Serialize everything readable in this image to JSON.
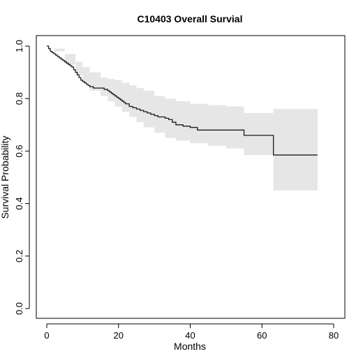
{
  "chart_data": {
    "type": "line",
    "title": "C10403 Overall Survial",
    "xlabel": "Months",
    "ylabel": "Survival Probability",
    "xlim": [
      0,
      80
    ],
    "ylim": [
      0,
      1
    ],
    "x_ticks": [
      0,
      20,
      40,
      60,
      80
    ],
    "y_ticks": [
      0.0,
      0.2,
      0.4,
      0.6,
      0.8,
      1.0
    ],
    "x_tick_labels": [
      "0",
      "20",
      "40",
      "60",
      "80"
    ],
    "y_tick_labels": [
      "0.0",
      "0.2",
      "0.4",
      "0.6",
      "0.8",
      "1.0"
    ],
    "grid": false,
    "legend": false,
    "colors": {
      "line": "#1a1a1a",
      "band": "#e6e6e6"
    },
    "series": [
      {
        "kind": "step",
        "x": [
          0,
          0.5,
          1,
          1.5,
          2,
          2.5,
          3,
          3.5,
          4,
          4.5,
          5,
          5.5,
          6,
          6.5,
          7,
          7.5,
          8,
          8.5,
          9,
          9.5,
          10,
          10.5,
          11,
          11.5,
          12,
          13,
          14,
          15,
          16,
          17,
          17.5,
          18,
          18.5,
          19,
          19.5,
          20,
          20.5,
          21,
          21.5,
          22,
          23,
          24,
          25,
          26,
          27,
          28,
          29,
          30,
          31,
          32,
          33,
          34,
          35,
          36,
          38,
          40,
          42,
          48,
          54,
          55,
          63,
          63.2,
          75.5
        ],
        "y": [
          1.0,
          0.99,
          0.98,
          0.975,
          0.97,
          0.965,
          0.96,
          0.955,
          0.95,
          0.945,
          0.94,
          0.935,
          0.93,
          0.925,
          0.92,
          0.91,
          0.9,
          0.89,
          0.88,
          0.87,
          0.865,
          0.86,
          0.855,
          0.85,
          0.845,
          0.84,
          0.84,
          0.84,
          0.835,
          0.83,
          0.825,
          0.82,
          0.815,
          0.81,
          0.805,
          0.8,
          0.795,
          0.79,
          0.785,
          0.78,
          0.77,
          0.765,
          0.76,
          0.755,
          0.75,
          0.745,
          0.74,
          0.735,
          0.73,
          0.73,
          0.725,
          0.72,
          0.71,
          0.7,
          0.695,
          0.69,
          0.68,
          0.68,
          0.68,
          0.66,
          0.66,
          0.585,
          0.585
        ]
      }
    ],
    "confidence_band": {
      "x": [
        0,
        2,
        5,
        8,
        10,
        12,
        15,
        17,
        19,
        21,
        23,
        25,
        27,
        30,
        33,
        36,
        40,
        45,
        50,
        54,
        55,
        62,
        63,
        63.2,
        75.5
      ],
      "upper": [
        1.0,
        0.99,
        0.97,
        0.94,
        0.92,
        0.9,
        0.88,
        0.875,
        0.87,
        0.86,
        0.85,
        0.84,
        0.83,
        0.81,
        0.8,
        0.79,
        0.78,
        0.775,
        0.77,
        0.77,
        0.745,
        0.745,
        0.745,
        0.76,
        0.76
      ],
      "lower": [
        1.0,
        0.98,
        0.93,
        0.89,
        0.86,
        0.83,
        0.81,
        0.79,
        0.77,
        0.75,
        0.73,
        0.71,
        0.69,
        0.67,
        0.65,
        0.64,
        0.63,
        0.62,
        0.61,
        0.61,
        0.585,
        0.585,
        0.585,
        0.45,
        0.45
      ]
    }
  }
}
